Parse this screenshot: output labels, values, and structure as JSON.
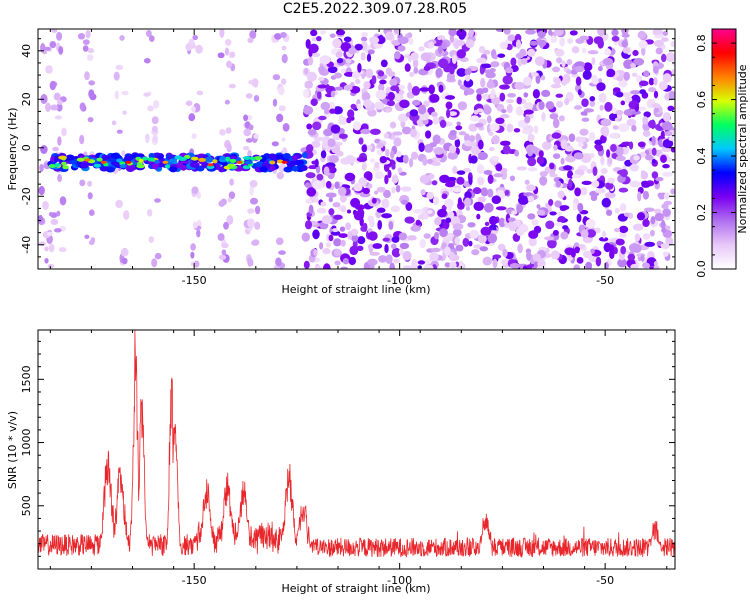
{
  "title": "C2E5.2022.309.07.28.R05",
  "chart_data": [
    {
      "type": "heatmap",
      "xlabel": "Height of straight line (km)",
      "ylabel": "Frequency (Hz)",
      "xlim": [
        -188,
        -33
      ],
      "ylim": [
        -50,
        49
      ],
      "xticks": [
        -150,
        -100,
        -50
      ],
      "yticks": [
        -40,
        -20,
        0,
        20,
        40
      ],
      "colorbar": {
        "label": "Normalized spectral amplitude",
        "range": [
          0.0,
          0.85
        ],
        "ticks": [
          0.0,
          0.2,
          0.4,
          0.6,
          0.8
        ],
        "colormap": [
          "#ffffff",
          "#e8c8f8",
          "#b070f0",
          "#7a00f0",
          "#0000ff",
          "#00c8ff",
          "#00ff60",
          "#d8ff00",
          "#ff8000",
          "#ff0000",
          "#ff0090"
        ]
      },
      "features": {
        "signal_band": {
          "x_range": [
            -185,
            -123
          ],
          "y_center": -6,
          "y_halfwidth": 3,
          "peak_amplitude": 0.8
        },
        "noise_low_region": {
          "x_range": [
            -188,
            -123
          ],
          "amplitude": 0.15
        },
        "noise_high_region": {
          "x_range": [
            -123,
            -33
          ],
          "amplitude": 0.3
        }
      }
    },
    {
      "type": "line",
      "xlabel": "Height of straight line (km)",
      "ylabel": "SNR (10 * v/v)",
      "xlim": [
        -188,
        -33
      ],
      "ylim": [
        0,
        1890
      ],
      "xticks": [
        -150,
        -100,
        -50
      ],
      "yticks": [
        500,
        1000,
        1500
      ],
      "series": [
        {
          "color": "#e8252a",
          "baseline": 190,
          "peaks": [
            {
              "x": -171,
              "y": 890
            },
            {
              "x": -168,
              "y": 780
            },
            {
              "x": -164.3,
              "y": 1880
            },
            {
              "x": -162.7,
              "y": 1520
            },
            {
              "x": -155.5,
              "y": 1530
            },
            {
              "x": -154.6,
              "y": 1370
            },
            {
              "x": -147,
              "y": 640
            },
            {
              "x": -142,
              "y": 700
            },
            {
              "x": -138,
              "y": 690
            },
            {
              "x": -127,
              "y": 790
            },
            {
              "x": -123.5,
              "y": 520
            },
            {
              "x": -79,
              "y": 390
            },
            {
              "x": -38,
              "y": 330
            }
          ]
        }
      ]
    }
  ]
}
